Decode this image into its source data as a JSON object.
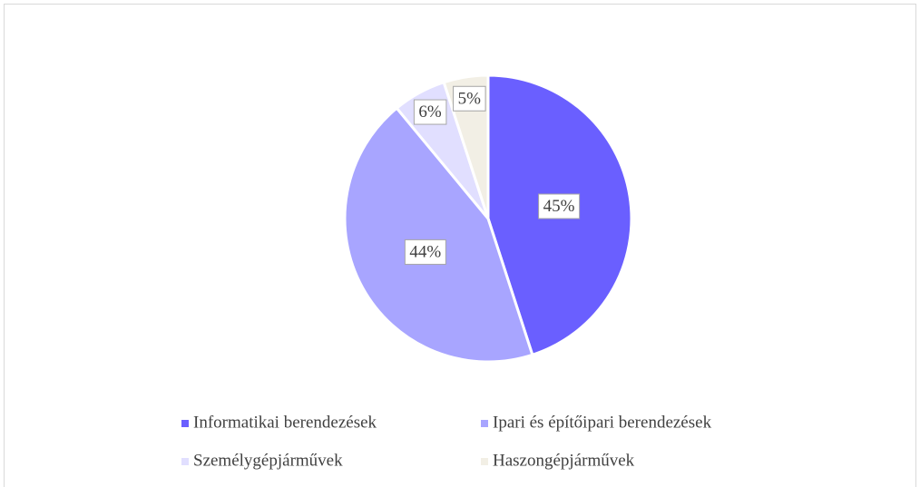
{
  "chart_data": {
    "type": "pie",
    "categories": [
      "Informatikai berendezések",
      "Ipari és építőipari berendezések",
      "Személygépjárművek",
      "Haszongépjárművek"
    ],
    "values": [
      45,
      44,
      6,
      5
    ],
    "value_labels": [
      "45%",
      "44%",
      "6%",
      "5%"
    ],
    "colors": [
      "#6a5fff",
      "#a8a5ff",
      "#e1dfff",
      "#f2efe5"
    ],
    "legend": "bottom"
  }
}
